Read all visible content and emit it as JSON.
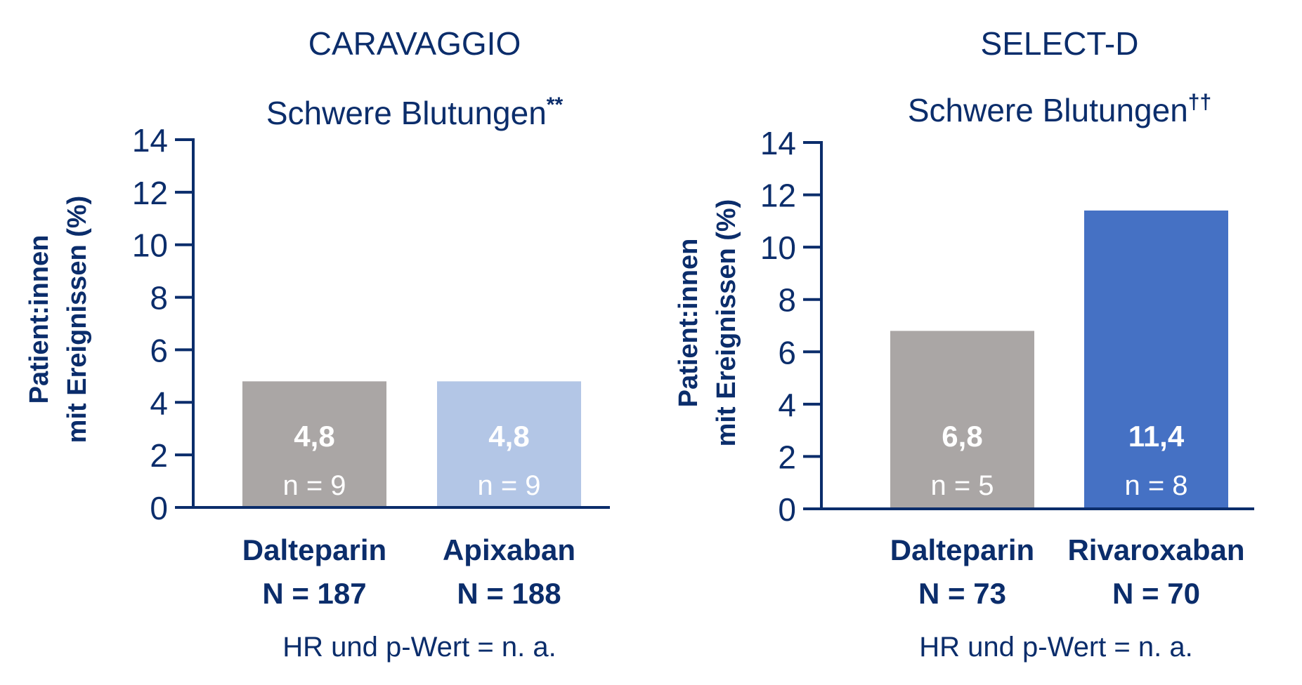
{
  "chart_data": [
    {
      "type": "bar",
      "study": "CARAVAGGIO",
      "title": "Schwere Blutungen",
      "title_sup": "**",
      "ylabel_line1": "Patient:innen",
      "ylabel_line2": "mit  Ereignissen (%)",
      "ylim": [
        0,
        14
      ],
      "yticks": [
        0,
        2,
        4,
        6,
        8,
        10,
        12,
        14
      ],
      "categories": [
        "Dalteparin",
        "Apixaban"
      ],
      "category_n": [
        "N = 187",
        "N = 188"
      ],
      "values": [
        4.8,
        4.8
      ],
      "value_labels": [
        "4,8",
        "4,8"
      ],
      "n_labels": [
        "n = 9",
        "n = 9"
      ],
      "bar_colors": [
        "#aaa6a5",
        "#b3c6e6"
      ],
      "footnote": "HR und p-Wert = n. a."
    },
    {
      "type": "bar",
      "study": "SELECT-D",
      "title": "Schwere Blutungen",
      "title_sup": "††",
      "ylabel_line1": "Patient:innen",
      "ylabel_line2": "mit  Ereignissen (%)",
      "ylim": [
        0,
        14
      ],
      "yticks": [
        0,
        2,
        4,
        6,
        8,
        10,
        12,
        14
      ],
      "categories": [
        "Dalteparin",
        "Rivaroxaban"
      ],
      "category_n": [
        "N = 73",
        "N = 70"
      ],
      "values": [
        6.8,
        11.4
      ],
      "value_labels": [
        "6,8",
        "11,4"
      ],
      "n_labels": [
        "n = 5",
        "n = 8"
      ],
      "bar_colors": [
        "#aaa6a5",
        "#4571c4"
      ],
      "footnote": "HR und p-Wert = n. a."
    }
  ],
  "colors": {
    "navy": "#0b2d6b",
    "white": "#ffffff"
  }
}
